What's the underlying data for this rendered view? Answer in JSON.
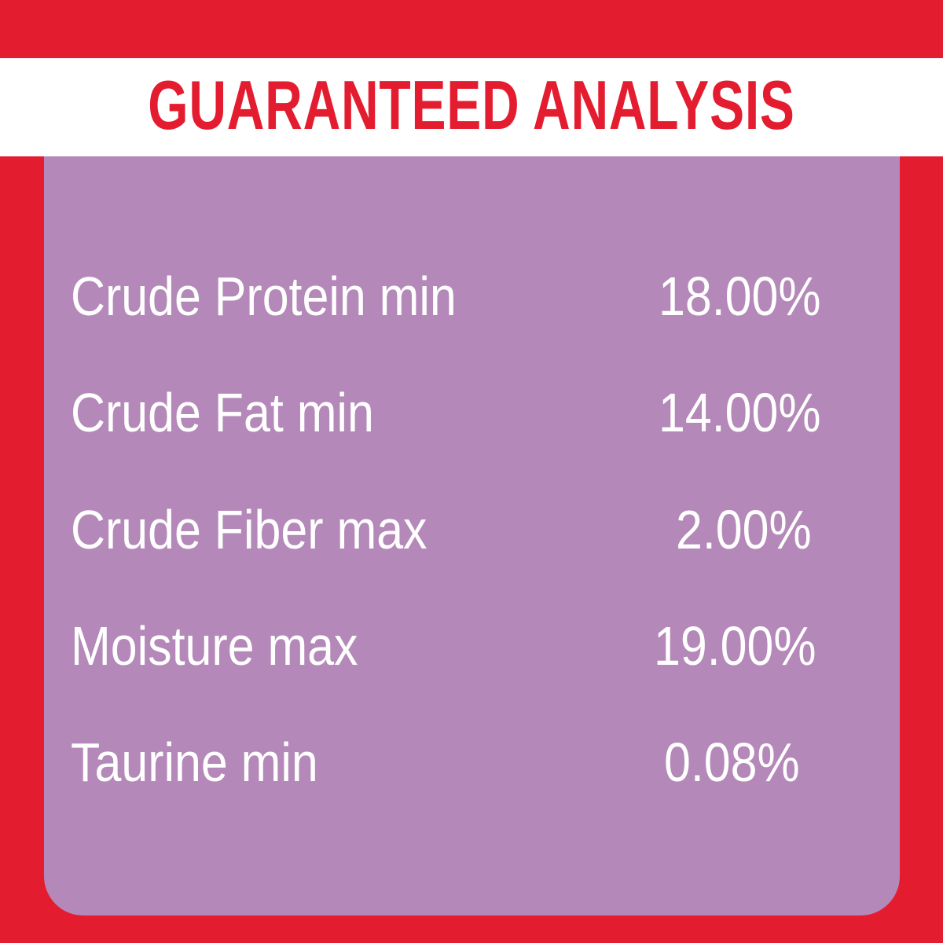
{
  "title": "GUARANTEED ANALYSIS",
  "colors": {
    "brand_red": "#e41c2f",
    "panel_purple": "#b488b8",
    "text": "#ffffff"
  },
  "rows": [
    {
      "label": "Crude Protein min",
      "value": "18.00%"
    },
    {
      "label": "Crude Fat min",
      "value": "14.00%"
    },
    {
      "label": "Crude Fiber max",
      "value": "2.00%"
    },
    {
      "label": "Moisture max",
      "value": "19.00%"
    },
    {
      "label": "Taurine min",
      "value": "0.08%"
    }
  ]
}
